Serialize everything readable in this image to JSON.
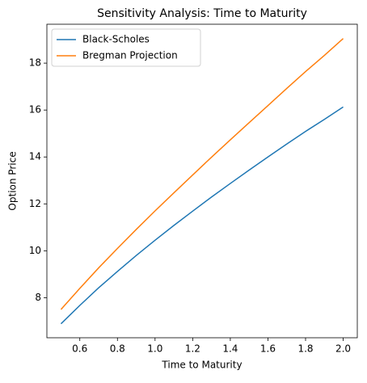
{
  "chart_data": {
    "type": "line",
    "title": "Sensitivity Analysis: Time to Maturity",
    "xlabel": "Time to Maturity",
    "ylabel": "Option Price",
    "x": [
      0.5,
      0.6,
      0.7,
      0.8,
      0.9,
      1.0,
      1.1,
      1.2,
      1.3,
      1.4,
      1.5,
      1.6,
      1.7,
      1.8,
      1.9,
      2.0
    ],
    "series": [
      {
        "name": "Black-Scholes",
        "color": "#1f77b4",
        "values": [
          6.89,
          7.67,
          8.42,
          9.12,
          9.8,
          10.45,
          11.08,
          11.69,
          12.29,
          12.87,
          13.44,
          14.0,
          14.55,
          15.09,
          15.6,
          16.13
        ]
      },
      {
        "name": "Bregman Projection",
        "color": "#ff7f0e",
        "values": [
          7.5,
          8.4,
          9.27,
          10.1,
          10.91,
          11.7,
          12.47,
          13.23,
          13.99,
          14.73,
          15.46,
          16.19,
          16.92,
          17.64,
          18.33,
          19.05
        ]
      }
    ],
    "xlim": [
      0.425,
      2.075
    ],
    "xticks": [
      0.6,
      0.8,
      {
        "value": 1.0,
        "label": "1.0"
      },
      1.2,
      1.4,
      1.6,
      1.8,
      {
        "value": 2.0,
        "label": "2.0"
      }
    ],
    "ylim": [
      6.2925,
      19.6575
    ],
    "yticks": [
      8,
      10,
      12,
      14,
      16,
      18
    ],
    "legend": "upper left",
    "grid": false
  }
}
